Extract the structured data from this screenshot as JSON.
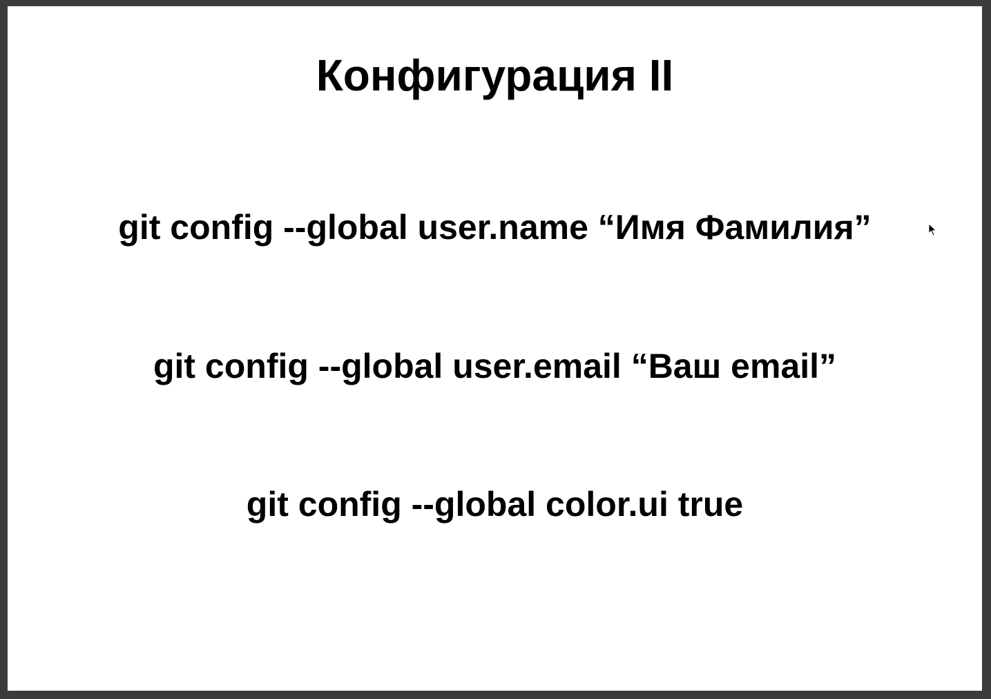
{
  "slide": {
    "title": "Конфигурация II",
    "commands": [
      "git config --global user.name “Имя Фамилия”",
      "git config --global user.email “Ваш email”",
      "git config --global color.ui true"
    ]
  },
  "cursor": {
    "icon": "mouse-pointer-icon"
  },
  "colors": {
    "background": "#ffffff",
    "text": "#000000",
    "frame": "#3b3b3b"
  }
}
